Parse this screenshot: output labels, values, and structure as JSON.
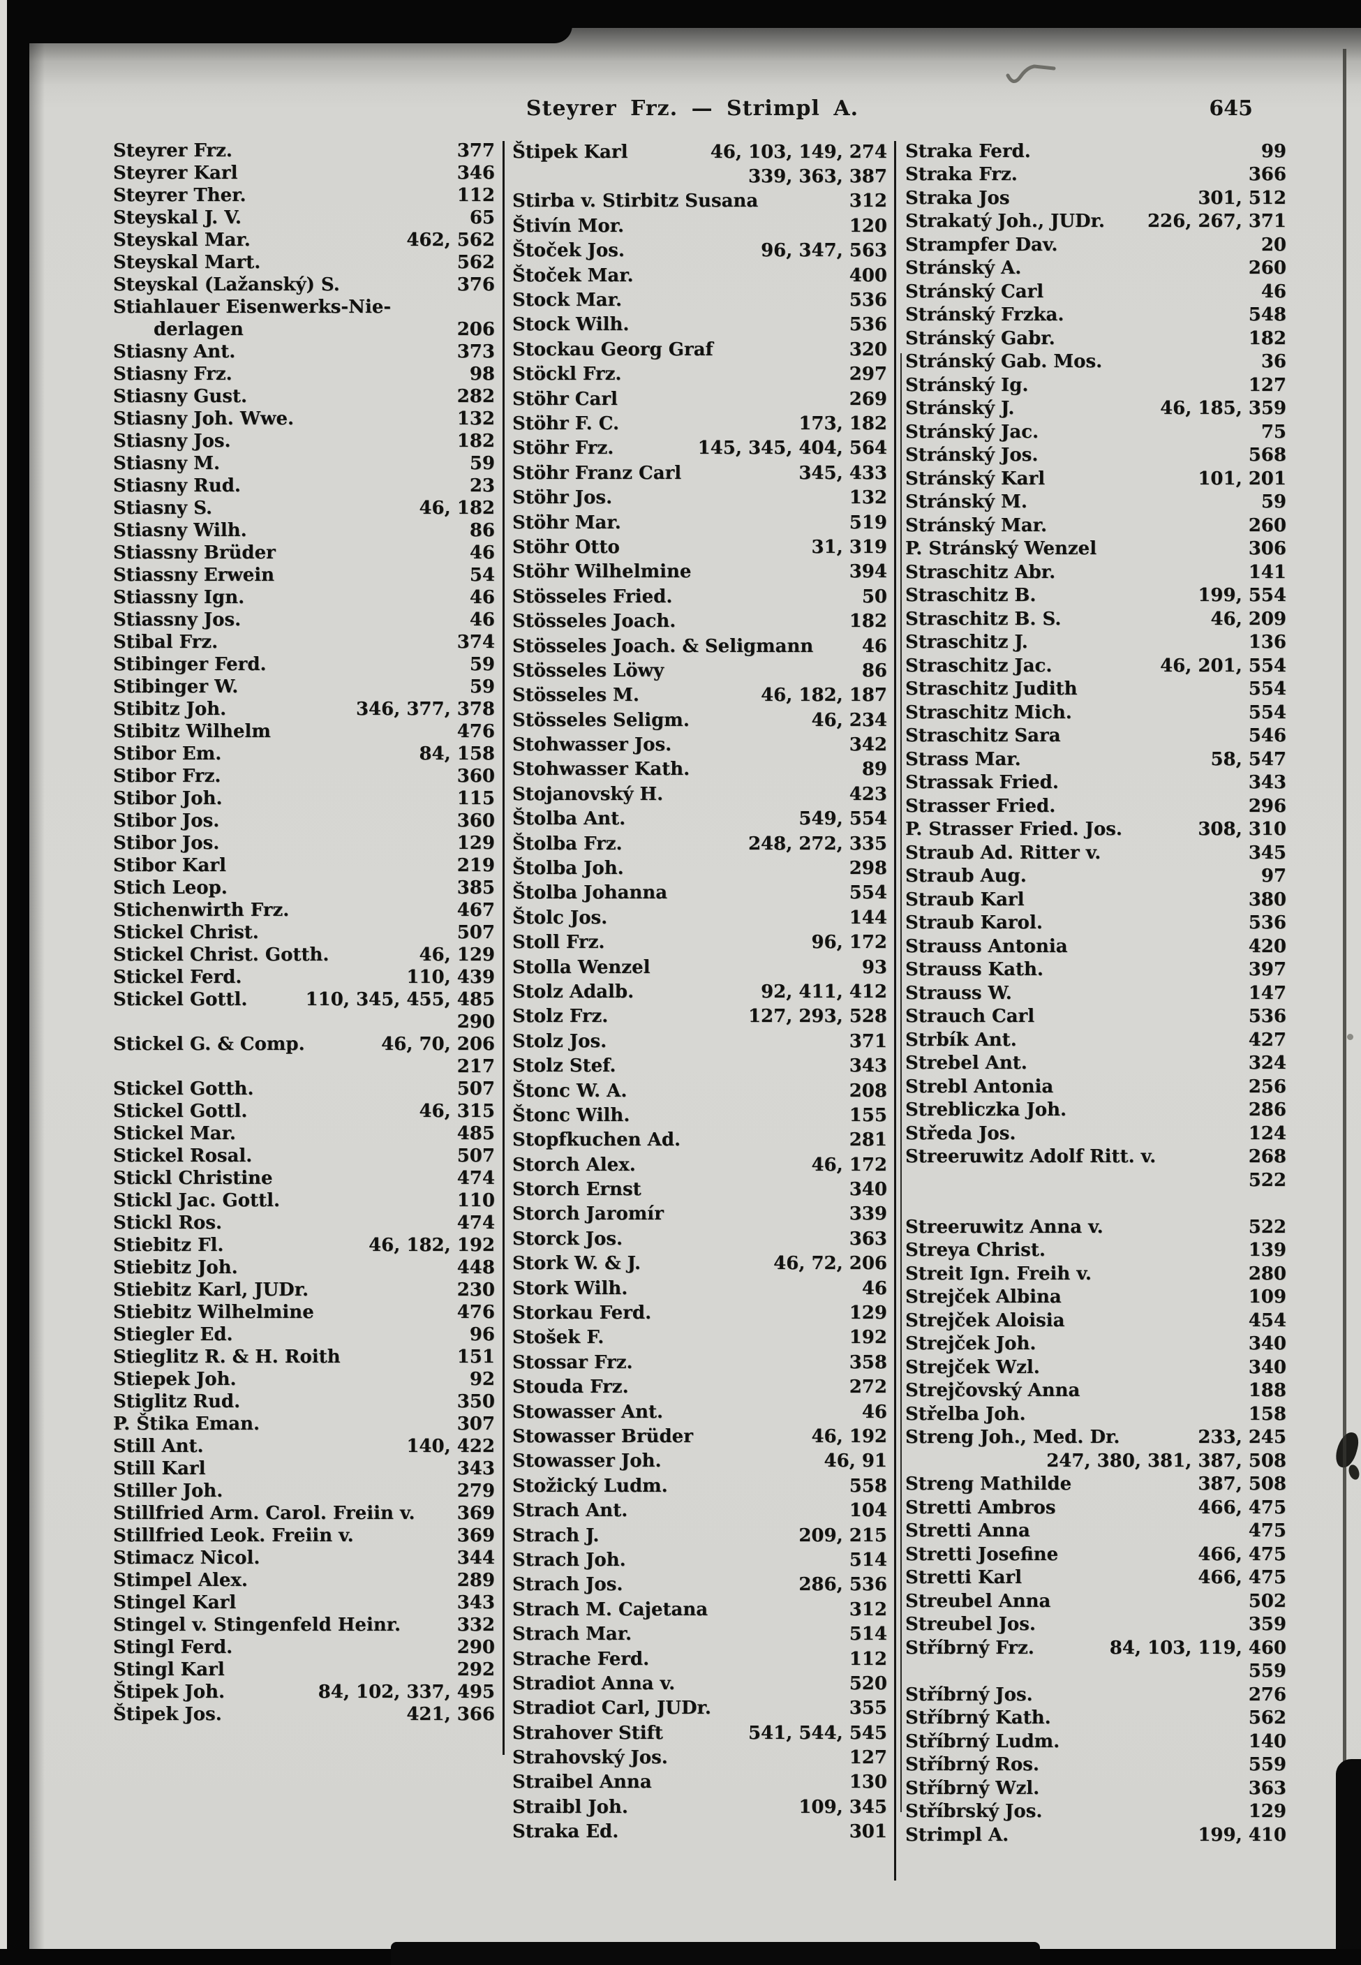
{
  "header": {
    "title": "Steyrer Frz. — Strimpl A.",
    "page_number": "645"
  },
  "colors": {
    "paper": "#d6d6d2",
    "ink": "#121210",
    "border": "#070707"
  },
  "columns": [
    {
      "entries": [
        {
          "n": "Steyrer Frz.",
          "p": "377"
        },
        {
          "n": "Steyrer Karl",
          "p": "346"
        },
        {
          "n": "Steyrer Ther.",
          "p": "112"
        },
        {
          "n": "Steyskal J. V.",
          "p": "65"
        },
        {
          "n": "Steyskal Mar.",
          "p": "462, 562"
        },
        {
          "n": "Steyskal Mart.",
          "p": "562"
        },
        {
          "n": "Steyskal (Lažanský) S.",
          "p": "376"
        },
        {
          "n": "Stiahlauer Eisenwerks-Nie-",
          "p": ""
        },
        {
          "n": "derlagen",
          "p": "206",
          "ind": true
        },
        {
          "n": "Stiasny Ant.",
          "p": "373"
        },
        {
          "n": "Stiasny Frz.",
          "p": "98"
        },
        {
          "n": "Stiasny Gust.",
          "p": "282"
        },
        {
          "n": "Stiasny Joh. Wwe.",
          "p": "132"
        },
        {
          "n": "Stiasny Jos.",
          "p": "182"
        },
        {
          "n": "Stiasny M.",
          "p": "59"
        },
        {
          "n": "Stiasny Rud.",
          "p": "23"
        },
        {
          "n": "Stiasny S.",
          "p": "46, 182"
        },
        {
          "n": "Stiasny Wilh.",
          "p": "86"
        },
        {
          "n": "Stiassny Brüder",
          "p": "46"
        },
        {
          "n": "Stiassny Erwein",
          "p": "54"
        },
        {
          "n": "Stiassny Ign.",
          "p": "46"
        },
        {
          "n": "Stiassny Jos.",
          "p": "46"
        },
        {
          "n": "Stibal Frz.",
          "p": "374"
        },
        {
          "n": "Stibinger Ferd.",
          "p": "59"
        },
        {
          "n": "Stibinger W.",
          "p": "59"
        },
        {
          "n": "Stibitz Joh.",
          "p": "346, 377, 378"
        },
        {
          "n": "Stibitz Wilhelm",
          "p": "476"
        },
        {
          "n": "Stibor Em.",
          "p": "84, 158"
        },
        {
          "n": "Stibor Frz.",
          "p": "360"
        },
        {
          "n": "Stibor Joh.",
          "p": "115"
        },
        {
          "n": "Stibor Jos.",
          "p": "360"
        },
        {
          "n": "Stibor Jos.",
          "p": "129"
        },
        {
          "n": "Stibor Karl",
          "p": "219"
        },
        {
          "n": "Stich Leop.",
          "p": "385"
        },
        {
          "n": "Stichenwirth Frz.",
          "p": "467"
        },
        {
          "n": "Stickel Christ.",
          "p": "507"
        },
        {
          "n": "Stickel Christ. Gotth.",
          "p": "46, 129"
        },
        {
          "n": "Stickel Ferd.",
          "p": "110, 439"
        },
        {
          "n": "Stickel Gottl.",
          "p": "110, 345, 455, 485"
        },
        {
          "n": "",
          "p": "290"
        },
        {
          "n": "Stickel G. & Comp.",
          "p": "46, 70, 206"
        },
        {
          "n": "",
          "p": "217"
        },
        {
          "n": "Stickel Gotth.",
          "p": "507"
        },
        {
          "n": "Stickel Gottl.",
          "p": "46, 315"
        },
        {
          "n": "Stickel Mar.",
          "p": "485"
        },
        {
          "n": "Stickel Rosal.",
          "p": "507"
        },
        {
          "n": "Stickl Christine",
          "p": "474"
        },
        {
          "n": "Stickl Jac. Gottl.",
          "p": "110"
        },
        {
          "n": "Stickl Ros.",
          "p": "474"
        },
        {
          "n": "Stiebitz Fl.",
          "p": "46, 182, 192"
        },
        {
          "n": "Stiebitz Joh.",
          "p": "448"
        },
        {
          "n": "Stiebitz Karl, JUDr.",
          "p": "230"
        },
        {
          "n": "Stiebitz Wilhelmine",
          "p": "476"
        },
        {
          "n": "Stiegler Ed.",
          "p": "96"
        },
        {
          "n": "Stieglitz R. & H. Roith",
          "p": "151"
        },
        {
          "n": "Stiepek Joh.",
          "p": "92"
        },
        {
          "n": "Stiglitz Rud.",
          "p": "350"
        },
        {
          "n": "P. Štika Eman.",
          "p": "307"
        },
        {
          "n": "Still Ant.",
          "p": "140, 422"
        },
        {
          "n": "Still Karl",
          "p": "343"
        },
        {
          "n": "Stiller Joh.",
          "p": "279"
        },
        {
          "n": "Stillfried Arm. Carol. Freiin v.",
          "p": "369"
        },
        {
          "n": "Stillfried Leok. Freiin v.",
          "p": "369"
        },
        {
          "n": "Stimacz Nicol.",
          "p": "344"
        },
        {
          "n": "Stimpel Alex.",
          "p": "289"
        },
        {
          "n": "Stingel Karl",
          "p": "343"
        },
        {
          "n": "Stingel v. Stingenfeld Heinr.",
          "p": "332"
        },
        {
          "n": "Stingl Ferd.",
          "p": "290"
        },
        {
          "n": "Stingl Karl",
          "p": "292"
        },
        {
          "n": "Štipek Joh.",
          "p": "84, 102, 337, 495"
        },
        {
          "n": "Štipek Jos.",
          "p": "421, 366"
        }
      ]
    },
    {
      "entries": [
        {
          "n": "Štipek Karl",
          "p": "46, 103, 149, 274"
        },
        {
          "n": "",
          "p": "339, 363, 387"
        },
        {
          "n": "Stirba v. Stirbitz Susana",
          "p": "312"
        },
        {
          "n": "Štivín Mor.",
          "p": "120"
        },
        {
          "n": "Štoček Jos.",
          "p": "96, 347, 563"
        },
        {
          "n": "Štoček Mar.",
          "p": "400"
        },
        {
          "n": "Stock Mar.",
          "p": "536"
        },
        {
          "n": "Stock Wilh.",
          "p": "536"
        },
        {
          "n": "Stockau Georg Graf",
          "p": "320"
        },
        {
          "n": "Stöckl Frz.",
          "p": "297"
        },
        {
          "n": "Stöhr Carl",
          "p": "269"
        },
        {
          "n": "Stöhr F. C.",
          "p": "173, 182"
        },
        {
          "n": "Stöhr Frz.",
          "p": "145, 345, 404, 564"
        },
        {
          "n": "Stöhr Franz Carl",
          "p": "345, 433"
        },
        {
          "n": "Stöhr Jos.",
          "p": "132"
        },
        {
          "n": "Stöhr Mar.",
          "p": "519"
        },
        {
          "n": "Stöhr Otto",
          "p": "31, 319"
        },
        {
          "n": "Stöhr Wilhelmine",
          "p": "394"
        },
        {
          "n": "Stösseles Fried.",
          "p": "50"
        },
        {
          "n": "Stösseles Joach.",
          "p": "182"
        },
        {
          "n": "Stösseles Joach. & Seligmann",
          "p": "46"
        },
        {
          "n": "Stösseles Löwy",
          "p": "86"
        },
        {
          "n": "Stösseles M.",
          "p": "46, 182, 187"
        },
        {
          "n": "Stösseles Seligm.",
          "p": "46, 234"
        },
        {
          "n": "Stohwasser Jos.",
          "p": "342"
        },
        {
          "n": "Stohwasser Kath.",
          "p": "89"
        },
        {
          "n": "Stojanovský H.",
          "p": "423"
        },
        {
          "n": "Štolba Ant.",
          "p": "549, 554"
        },
        {
          "n": "Štolba Frz.",
          "p": "248, 272, 335"
        },
        {
          "n": "Štolba Joh.",
          "p": "298"
        },
        {
          "n": "Štolba Johanna",
          "p": "554"
        },
        {
          "n": "Štolc Jos.",
          "p": "144"
        },
        {
          "n": "Stoll Frz.",
          "p": "96, 172"
        },
        {
          "n": "Stolla Wenzel",
          "p": "93"
        },
        {
          "n": "Stolz Adalb.",
          "p": "92, 411, 412"
        },
        {
          "n": "Stolz Frz.",
          "p": "127, 293, 528"
        },
        {
          "n": "Stolz Jos.",
          "p": "371"
        },
        {
          "n": "Stolz Stef.",
          "p": "343"
        },
        {
          "n": "Štonc W. A.",
          "p": "208"
        },
        {
          "n": "Štonc Wilh.",
          "p": "155"
        },
        {
          "n": "Stopfkuchen Ad.",
          "p": "281"
        },
        {
          "n": "Storch Alex.",
          "p": "46, 172"
        },
        {
          "n": "Storch Ernst",
          "p": "340"
        },
        {
          "n": "Storch Jaromír",
          "p": "339"
        },
        {
          "n": "Storck Jos.",
          "p": "363"
        },
        {
          "n": "Stork W. & J.",
          "p": "46, 72, 206"
        },
        {
          "n": "Stork Wilh.",
          "p": "46"
        },
        {
          "n": "Storkau Ferd.",
          "p": "129"
        },
        {
          "n": "Stošek F.",
          "p": "192"
        },
        {
          "n": "Stossar Frz.",
          "p": "358"
        },
        {
          "n": "Stouda Frz.",
          "p": "272"
        },
        {
          "n": "Stowasser Ant.",
          "p": "46"
        },
        {
          "n": "Stowasser Brüder",
          "p": "46, 192"
        },
        {
          "n": "Stowasser Joh.",
          "p": "46, 91"
        },
        {
          "n": "Stožický Ludm.",
          "p": "558"
        },
        {
          "n": "Strach Ant.",
          "p": "104"
        },
        {
          "n": "Strach J.",
          "p": "209, 215"
        },
        {
          "n": "Strach Joh.",
          "p": "514"
        },
        {
          "n": "Strach Jos.",
          "p": "286, 536"
        },
        {
          "n": "Strach M. Cajetana",
          "p": "312"
        },
        {
          "n": "Strach Mar.",
          "p": "514"
        },
        {
          "n": "Strache Ferd.",
          "p": "112"
        },
        {
          "n": "Stradiot Anna v.",
          "p": "520"
        },
        {
          "n": "Stradiot Carl, JUDr.",
          "p": "355"
        },
        {
          "n": "Strahover Stift",
          "p": "541, 544, 545"
        },
        {
          "n": "Strahovský Jos.",
          "p": "127"
        },
        {
          "n": "Straibel Anna",
          "p": "130"
        },
        {
          "n": "Straibl Joh.",
          "p": "109, 345"
        },
        {
          "n": "Straka Ed.",
          "p": "301"
        }
      ]
    },
    {
      "entries": [
        {
          "n": "Straka Ferd.",
          "p": "99"
        },
        {
          "n": "Straka Frz.",
          "p": "366"
        },
        {
          "n": "Straka Jos",
          "p": "301, 512"
        },
        {
          "n": "Strakatý Joh., JUDr.",
          "p": "226, 267, 371"
        },
        {
          "n": "Strampfer Dav.",
          "p": "20"
        },
        {
          "n": "Stránský A.",
          "p": "260"
        },
        {
          "n": "Stránský Carl",
          "p": "46"
        },
        {
          "n": "Stránský Frzka.",
          "p": "548"
        },
        {
          "n": "Stránský Gabr.",
          "p": "182"
        },
        {
          "n": "Stránský Gab. Mos.",
          "p": "36"
        },
        {
          "n": "Stránský Ig.",
          "p": "127"
        },
        {
          "n": "Stránský J.",
          "p": "46, 185, 359"
        },
        {
          "n": "Stránský Jac.",
          "p": "75"
        },
        {
          "n": "Stránský Jos.",
          "p": "568"
        },
        {
          "n": "Stránský Karl",
          "p": "101, 201"
        },
        {
          "n": "Stránský M.",
          "p": "59"
        },
        {
          "n": "Stránský Mar.",
          "p": "260"
        },
        {
          "n": "P. Stránský Wenzel",
          "p": "306"
        },
        {
          "n": "Straschitz Abr.",
          "p": "141"
        },
        {
          "n": "Straschitz B.",
          "p": "199, 554"
        },
        {
          "n": "Straschitz B. S.",
          "p": "46, 209"
        },
        {
          "n": "Straschitz J.",
          "p": "136"
        },
        {
          "n": "Straschitz Jac.",
          "p": "46, 201, 554"
        },
        {
          "n": "Straschitz Judith",
          "p": "554"
        },
        {
          "n": "Straschitz Mich.",
          "p": "554"
        },
        {
          "n": "Straschitz Sara",
          "p": "546"
        },
        {
          "n": "Strass Mar.",
          "p": "58, 547"
        },
        {
          "n": "Strassak Fried.",
          "p": "343"
        },
        {
          "n": "Strasser Fried.",
          "p": "296"
        },
        {
          "n": "P. Strasser Fried. Jos.",
          "p": "308, 310"
        },
        {
          "n": "Straub Ad. Ritter v.",
          "p": "345"
        },
        {
          "n": "Straub Aug.",
          "p": "97"
        },
        {
          "n": "Straub Karl",
          "p": "380"
        },
        {
          "n": "Straub Karol.",
          "p": "536"
        },
        {
          "n": "Strauss Antonia",
          "p": "420"
        },
        {
          "n": "Strauss Kath.",
          "p": "397"
        },
        {
          "n": "Strauss W.",
          "p": "147"
        },
        {
          "n": "Strauch Carl",
          "p": "536"
        },
        {
          "n": "Strbík Ant.",
          "p": "427"
        },
        {
          "n": "Strebel Ant.",
          "p": "324"
        },
        {
          "n": "Strebl Antonia",
          "p": "256"
        },
        {
          "n": "Strebliczka Joh.",
          "p": "286"
        },
        {
          "n": "Středa Jos.",
          "p": "124"
        },
        {
          "n": "Streeruwitz Adolf Ritt. v.",
          "p": "268"
        },
        {
          "n": "",
          "p": "522"
        },
        {
          "sp": true
        },
        {
          "n": "Streeruwitz Anna v.",
          "p": "522"
        },
        {
          "n": "Streya Christ.",
          "p": "139"
        },
        {
          "n": "Streit Ign. Freih v.",
          "p": "280"
        },
        {
          "n": "Strejček Albina",
          "p": "109"
        },
        {
          "n": "Strejček Aloisia",
          "p": "454"
        },
        {
          "n": "Strejček Joh.",
          "p": "340"
        },
        {
          "n": "Strejček Wzl.",
          "p": "340"
        },
        {
          "n": "Strejčovský Anna",
          "p": "188"
        },
        {
          "n": "Střelba Joh.",
          "p": "158"
        },
        {
          "n": "Streng Joh., Med. Dr.",
          "p": "233, 245"
        },
        {
          "n": "",
          "p": "247, 380, 381, 387, 508"
        },
        {
          "n": "Streng Mathilde",
          "p": "387, 508"
        },
        {
          "n": "Stretti Ambros",
          "p": "466, 475"
        },
        {
          "n": "Stretti Anna",
          "p": "475"
        },
        {
          "n": "Stretti Josefine",
          "p": "466, 475"
        },
        {
          "n": "Stretti Karl",
          "p": "466, 475"
        },
        {
          "n": "Streubel Anna",
          "p": "502"
        },
        {
          "n": "Streubel Jos.",
          "p": "359"
        },
        {
          "n": "Stříbrný Frz.",
          "p": "84, 103, 119, 460"
        },
        {
          "n": "",
          "p": "559"
        },
        {
          "n": "Stříbrný Jos.",
          "p": "276"
        },
        {
          "n": "Stříbrný Kath.",
          "p": "562"
        },
        {
          "n": "Stříbrný Ludm.",
          "p": "140"
        },
        {
          "n": "Stříbrný Ros.",
          "p": "559"
        },
        {
          "n": "Stříbrný Wzl.",
          "p": "363"
        },
        {
          "n": "Stříbrský Jos.",
          "p": "129"
        },
        {
          "n": "Strimpl A.",
          "p": "199, 410"
        }
      ]
    }
  ]
}
